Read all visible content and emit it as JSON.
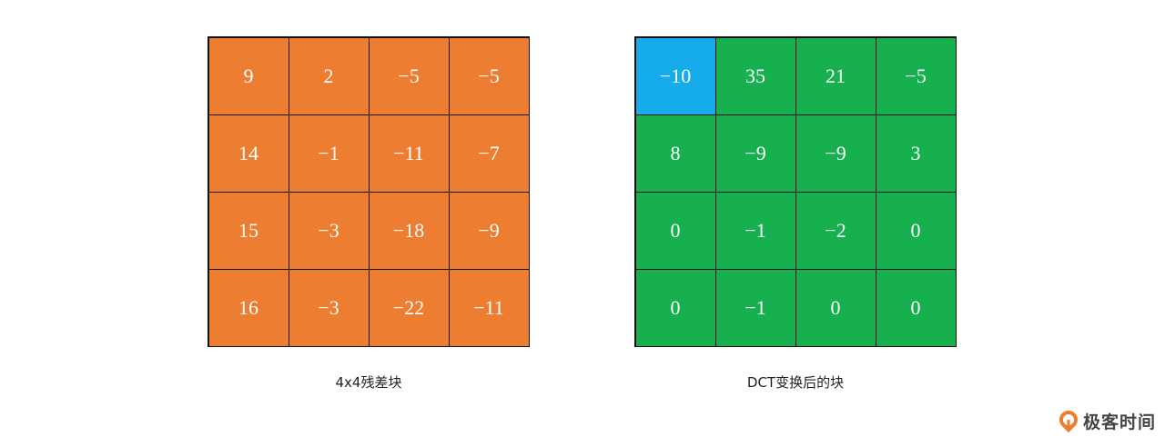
{
  "colors": {
    "residual": "#ED7D31",
    "dct": "#17B04F",
    "dc_highlight": "#16ACEC",
    "border": "#111111"
  },
  "residual_block": {
    "caption": "4x4残差块",
    "rows": [
      [
        "9",
        "2",
        "−5",
        "−5"
      ],
      [
        "14",
        "−1",
        "−11",
        "−7"
      ],
      [
        "15",
        "−3",
        "−18",
        "−9"
      ],
      [
        "16",
        "−3",
        "−22",
        "−11"
      ]
    ]
  },
  "dct_block": {
    "caption": "DCT变换后的块",
    "highlight": "top-left (DC coefficient)",
    "rows": [
      [
        "−10",
        "35",
        "21",
        "−5"
      ],
      [
        "8",
        "−9",
        "−9",
        "3"
      ],
      [
        "0",
        "−1",
        "−2",
        "0"
      ],
      [
        "0",
        "−1",
        "0",
        "0"
      ]
    ]
  },
  "logo": {
    "text": "极客时间"
  }
}
